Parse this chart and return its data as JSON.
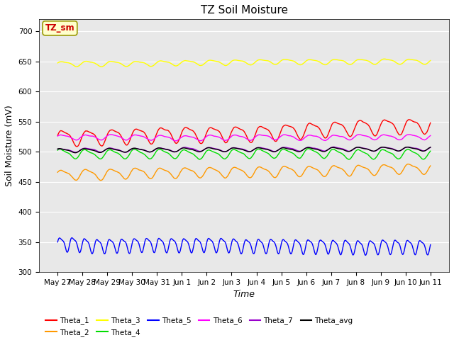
{
  "title": "TZ Soil Moisture",
  "ylabel": "Soil Moisture (mV)",
  "xlabel": "Time",
  "ylim": [
    300,
    720
  ],
  "yticks": [
    300,
    350,
    400,
    450,
    500,
    550,
    600,
    650,
    700
  ],
  "x_labels": [
    "May 27",
    "May 28",
    "May 29",
    "May 30",
    "May 31",
    "Jun 1",
    "Jun 2",
    "Jun 3",
    "Jun 4",
    "Jun 5",
    "Jun 6",
    "Jun 7",
    "Jun 8",
    "Jun 9",
    "Jun 10",
    "Jun 11"
  ],
  "num_points": 1440,
  "days": 15,
  "series": [
    {
      "name": "Theta_1",
      "color": "#ff0000",
      "base": 524,
      "amplitude": 12,
      "trend": 1.5,
      "freq": 1.0,
      "phase": 0.0
    },
    {
      "name": "Theta_2",
      "color": "#ff9900",
      "base": 461,
      "amplitude": 8,
      "trend": 0.8,
      "freq": 1.0,
      "phase": 0.3
    },
    {
      "name": "Theta_3",
      "color": "#ffff00",
      "base": 646,
      "amplitude": 4,
      "trend": 0.6,
      "freq": 1.0,
      "phase": 0.1
    },
    {
      "name": "Theta_4",
      "color": "#00dd00",
      "base": 497,
      "amplitude": 7,
      "trend": 0.2,
      "freq": 1.0,
      "phase": 0.5
    },
    {
      "name": "Theta_5",
      "color": "#0000ff",
      "base": 347,
      "amplitude": 11,
      "trend": 0.0,
      "freq": 2.0,
      "phase": 0.0
    },
    {
      "name": "Theta_6",
      "color": "#ff00ff",
      "base": 524,
      "amplitude": 4,
      "trend": -0.1,
      "freq": 1.0,
      "phase": 0.2
    },
    {
      "name": "Theta_7",
      "color": "#9900cc",
      "base": 502,
      "amplitude": 3,
      "trend": 0.3,
      "freq": 1.0,
      "phase": 0.4
    },
    {
      "name": "Theta_avg",
      "color": "#000000",
      "base": 502,
      "amplitude": 3,
      "trend": 0.4,
      "freq": 1.0,
      "phase": 0.6
    }
  ],
  "legend_box_color": "#ffffcc",
  "legend_box_edge": "#999900",
  "legend_box_text": "TZ_sm",
  "legend_box_text_color": "#cc0000",
  "plot_bg_color": "#e8e8e8",
  "fig_bg_color": "#ffffff",
  "title_fontsize": 11,
  "axis_label_fontsize": 9,
  "tick_fontsize": 7.5,
  "legend_fontsize": 7.5,
  "linewidth": 1.0
}
